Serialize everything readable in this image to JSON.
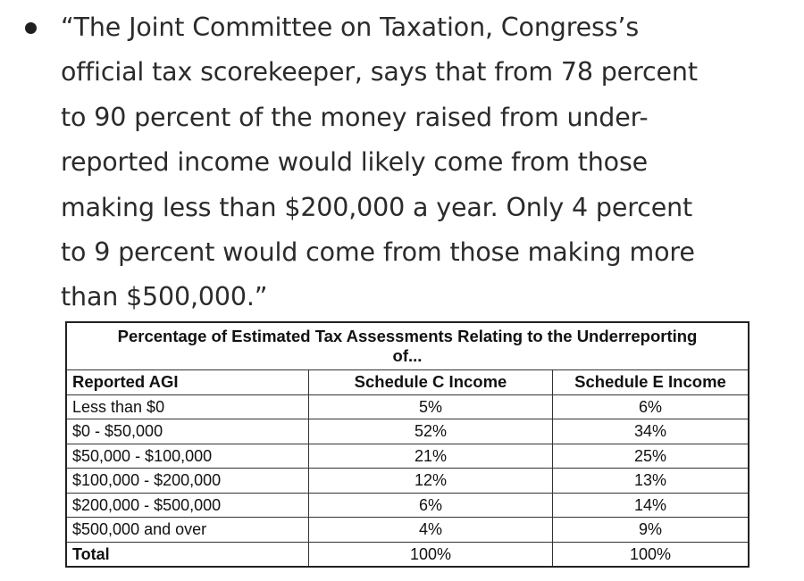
{
  "quote": {
    "lines": [
      "“The Joint Committee on Taxation, Congress’s",
      "official tax scorekeeper, says that from 78 percent",
      "to 90 percent of the money raised from under-",
      "reported income would likely come from those",
      "making less than $200,000 a year. Only 4 percent",
      "to 9 percent would come from those making more",
      "than $500,000.”"
    ]
  },
  "table": {
    "title_lines": [
      "Percentage of Estimated Tax Assessments Relating to the Underreporting",
      "of..."
    ],
    "headers": [
      "Reported AGI",
      "Schedule C Income",
      "Schedule E Income"
    ],
    "rows": [
      [
        "Less than $0",
        "5%",
        "6%"
      ],
      [
        "$0 - $50,000",
        "52%",
        "34%"
      ],
      [
        "$50,000 - $100,000",
        "21%",
        "25%"
      ],
      [
        "$100,000 - $200,000",
        "12%",
        "13%"
      ],
      [
        "$200,000 - $500,000",
        "6%",
        "14%"
      ],
      [
        "$500,000 and over",
        "4%",
        "9%"
      ]
    ],
    "total": [
      "Total",
      "100%",
      "100%"
    ]
  }
}
